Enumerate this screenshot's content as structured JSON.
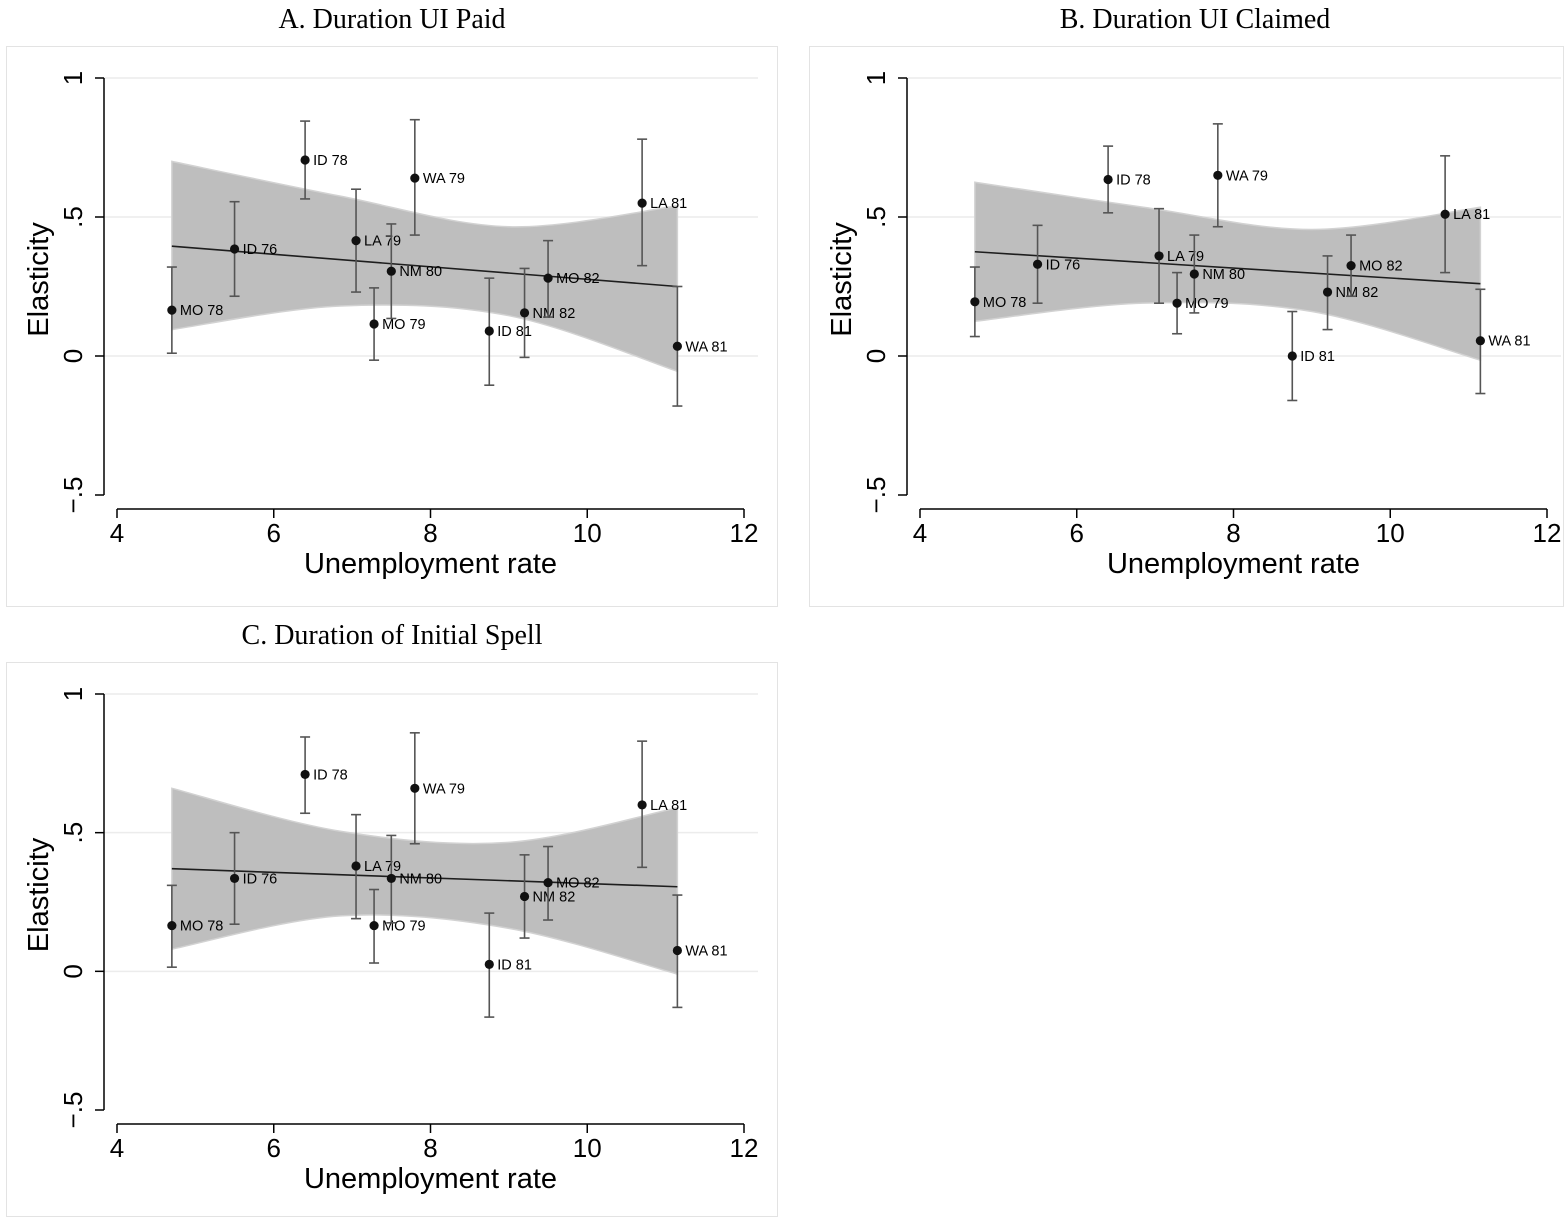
{
  "chart_data": [
    {
      "type": "scatter",
      "title": "A. Duration UI Paid",
      "xlabel": "Unemployment rate",
      "ylabel": "Elasticity",
      "xlim": [
        4,
        12
      ],
      "ylim": [
        -0.5,
        1
      ],
      "xticks": [
        4,
        6,
        8,
        10,
        12
      ],
      "yticks": [
        -0.5,
        0,
        0.5,
        1
      ],
      "ytick_labels": [
        "−.5",
        "0",
        ".5",
        "1"
      ],
      "grid": true,
      "points": [
        {
          "label": "MO 78",
          "x": 4.7,
          "y": 0.165,
          "lo": 0.01,
          "hi": 0.32
        },
        {
          "label": "ID 76",
          "x": 5.5,
          "y": 0.385,
          "lo": 0.215,
          "hi": 0.555
        },
        {
          "label": "ID 78",
          "x": 6.4,
          "y": 0.705,
          "lo": 0.565,
          "hi": 0.845
        },
        {
          "label": "LA 79",
          "x": 7.05,
          "y": 0.415,
          "lo": 0.23,
          "hi": 0.6
        },
        {
          "label": "MO 79",
          "x": 7.28,
          "y": 0.115,
          "lo": -0.015,
          "hi": 0.245
        },
        {
          "label": "NM 80",
          "x": 7.5,
          "y": 0.305,
          "lo": 0.135,
          "hi": 0.475
        },
        {
          "label": "WA 79",
          "x": 7.8,
          "y": 0.64,
          "lo": 0.435,
          "hi": 0.85
        },
        {
          "label": "ID 81",
          "x": 8.75,
          "y": 0.09,
          "lo": -0.105,
          "hi": 0.28
        },
        {
          "label": "NM 82",
          "x": 9.2,
          "y": 0.155,
          "lo": -0.005,
          "hi": 0.315
        },
        {
          "label": "MO 82",
          "x": 9.5,
          "y": 0.28,
          "lo": 0.14,
          "hi": 0.415
        },
        {
          "label": "LA 81",
          "x": 10.7,
          "y": 0.55,
          "lo": 0.325,
          "hi": 0.78
        },
        {
          "label": "WA 81",
          "x": 11.15,
          "y": 0.035,
          "lo": -0.18,
          "hi": 0.25
        }
      ],
      "fit": {
        "x0": 4.7,
        "x1": 11.15,
        "y0": 0.395,
        "y1": 0.25
      },
      "band": {
        "upper": [
          0.7,
          0.575,
          0.465,
          0.54
        ],
        "lower": [
          0.095,
          0.18,
          0.145,
          -0.055
        ]
      }
    },
    {
      "type": "scatter",
      "title": "B. Duration UI Claimed",
      "xlabel": "Unemployment rate",
      "ylabel": "Elasticity",
      "xlim": [
        4,
        12
      ],
      "ylim": [
        -0.5,
        1
      ],
      "xticks": [
        4,
        6,
        8,
        10,
        12
      ],
      "yticks": [
        -0.5,
        0,
        0.5,
        1
      ],
      "ytick_labels": [
        "−.5",
        "0",
        ".5",
        "1"
      ],
      "grid": true,
      "points": [
        {
          "label": "MO 78",
          "x": 4.7,
          "y": 0.195,
          "lo": 0.07,
          "hi": 0.32
        },
        {
          "label": "ID 76",
          "x": 5.5,
          "y": 0.33,
          "lo": 0.19,
          "hi": 0.47
        },
        {
          "label": "ID 78",
          "x": 6.4,
          "y": 0.635,
          "lo": 0.515,
          "hi": 0.755
        },
        {
          "label": "LA 79",
          "x": 7.05,
          "y": 0.36,
          "lo": 0.19,
          "hi": 0.53
        },
        {
          "label": "MO 79",
          "x": 7.28,
          "y": 0.19,
          "lo": 0.08,
          "hi": 0.3
        },
        {
          "label": "NM 80",
          "x": 7.5,
          "y": 0.295,
          "lo": 0.155,
          "hi": 0.435
        },
        {
          "label": "WA 79",
          "x": 7.8,
          "y": 0.65,
          "lo": 0.465,
          "hi": 0.835
        },
        {
          "label": "ID 81",
          "x": 8.75,
          "y": 0.0,
          "lo": -0.16,
          "hi": 0.16
        },
        {
          "label": "NM 82",
          "x": 9.2,
          "y": 0.23,
          "lo": 0.095,
          "hi": 0.36
        },
        {
          "label": "MO 82",
          "x": 9.5,
          "y": 0.325,
          "lo": 0.215,
          "hi": 0.435
        },
        {
          "label": "LA 81",
          "x": 10.7,
          "y": 0.51,
          "lo": 0.3,
          "hi": 0.72
        },
        {
          "label": "WA 81",
          "x": 11.15,
          "y": 0.055,
          "lo": -0.135,
          "hi": 0.24
        }
      ],
      "fit": {
        "x0": 4.7,
        "x1": 11.15,
        "y0": 0.375,
        "y1": 0.26
      },
      "band": {
        "upper": [
          0.625,
          0.535,
          0.455,
          0.535
        ],
        "lower": [
          0.125,
          0.19,
          0.16,
          -0.015
        ]
      }
    },
    {
      "type": "scatter",
      "title": "C. Duration of Initial Spell",
      "xlabel": "Unemployment rate",
      "ylabel": "Elasticity",
      "xlim": [
        4,
        12
      ],
      "ylim": [
        -0.5,
        1
      ],
      "xticks": [
        4,
        6,
        8,
        10,
        12
      ],
      "yticks": [
        -0.5,
        0,
        0.5,
        1
      ],
      "ytick_labels": [
        "−.5",
        "0",
        ".5",
        "1"
      ],
      "grid": true,
      "points": [
        {
          "label": "MO 78",
          "x": 4.7,
          "y": 0.165,
          "lo": 0.015,
          "hi": 0.31
        },
        {
          "label": "ID 76",
          "x": 5.5,
          "y": 0.335,
          "lo": 0.17,
          "hi": 0.5
        },
        {
          "label": "ID 78",
          "x": 6.4,
          "y": 0.71,
          "lo": 0.57,
          "hi": 0.845
        },
        {
          "label": "LA 79",
          "x": 7.05,
          "y": 0.38,
          "lo": 0.19,
          "hi": 0.565
        },
        {
          "label": "MO 79",
          "x": 7.28,
          "y": 0.165,
          "lo": 0.03,
          "hi": 0.295
        },
        {
          "label": "NM 80",
          "x": 7.5,
          "y": 0.335,
          "lo": 0.175,
          "hi": 0.49
        },
        {
          "label": "WA 79",
          "x": 7.8,
          "y": 0.66,
          "lo": 0.46,
          "hi": 0.86
        },
        {
          "label": "ID 81",
          "x": 8.75,
          "y": 0.025,
          "lo": -0.165,
          "hi": 0.21
        },
        {
          "label": "NM 82",
          "x": 9.2,
          "y": 0.27,
          "lo": 0.12,
          "hi": 0.42
        },
        {
          "label": "MO 82",
          "x": 9.5,
          "y": 0.32,
          "lo": 0.185,
          "hi": 0.45
        },
        {
          "label": "LA 81",
          "x": 10.7,
          "y": 0.6,
          "lo": 0.375,
          "hi": 0.83
        },
        {
          "label": "WA 81",
          "x": 11.15,
          "y": 0.075,
          "lo": -0.13,
          "hi": 0.275
        }
      ],
      "fit": {
        "x0": 4.7,
        "x1": 11.15,
        "y0": 0.37,
        "y1": 0.305
      },
      "band": {
        "upper": [
          0.66,
          0.505,
          0.465,
          0.59
        ],
        "lower": [
          0.08,
          0.2,
          0.155,
          -0.01
        ]
      }
    }
  ],
  "colors": {
    "band": "#bebebe",
    "fit_line": "#1e1e1e",
    "errorbar": "#555555",
    "marker": "#111111",
    "grid": "#ececec"
  }
}
